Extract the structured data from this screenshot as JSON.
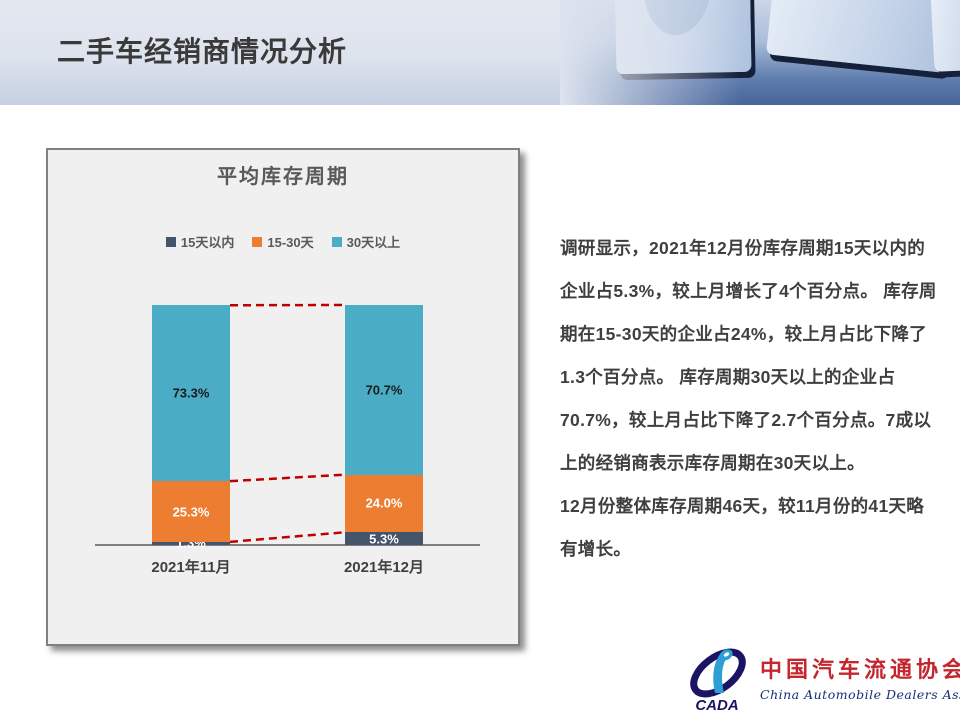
{
  "header": {
    "title": "二手车经销商情况分析"
  },
  "chart_data": {
    "type": "bar",
    "stacked": true,
    "title": "平均库存周期",
    "categories": [
      "2021年11月",
      "2021年12月"
    ],
    "series": [
      {
        "name": "15天以内",
        "color": "#44546A",
        "label_color": "#ffffff",
        "values": [
          1.3,
          5.3
        ]
      },
      {
        "name": "15-30天",
        "color": "#ED7D31",
        "label_color": "#ffffff",
        "values": [
          25.3,
          24.0
        ]
      },
      {
        "name": "30天以上",
        "color": "#4BACC6",
        "label_color": "#1a1a1a",
        "values": [
          73.3,
          70.7
        ]
      }
    ],
    "value_suffix": "%",
    "ylim": [
      0,
      100
    ],
    "legend_position": "top-center",
    "grid": false,
    "connector_color": "#C00000",
    "connector_style": "dashed",
    "axis_color": "#7f7f7f"
  },
  "commentary": {
    "lines": [
      "调研显示，2021年12月份库存周期15天以内的",
      "企业占5.3%，较上月增长了4个百分点。 库存周",
      "期在15-30天的企业占24%，较上月占比下降了",
      "1.3个百分点。 库存周期30天以上的企业占",
      "70.7%，较上月占比下降了2.7个百分点。7成以",
      "上的经销商表示库存周期在30天以上。",
      "12月份整体库存周期46天，较11月份的41天略",
      "有增长。"
    ]
  },
  "logo": {
    "acronym": "CADA",
    "name_cn": "中国汽车流通协会",
    "name_en": "China Automobile Dealers Association"
  }
}
